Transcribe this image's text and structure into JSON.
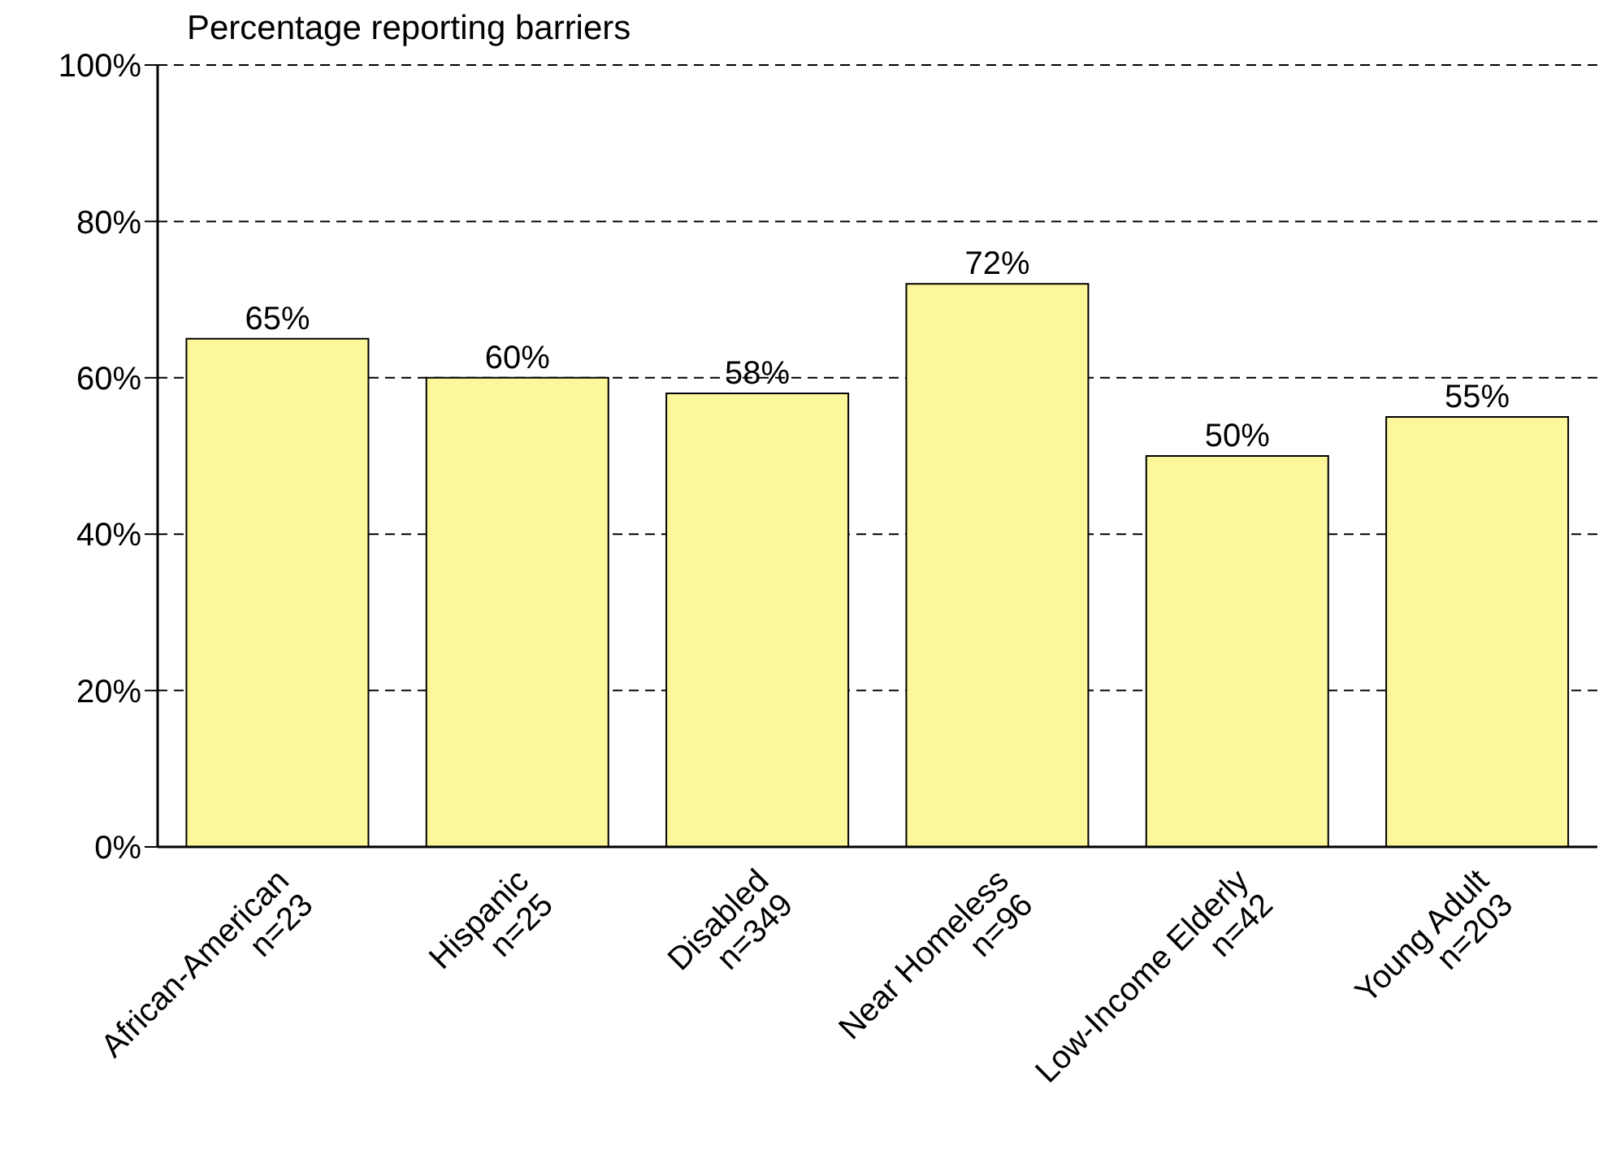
{
  "chart_data": {
    "type": "bar",
    "title": "Percentage reporting barriers",
    "categories": [
      "African-American\nn=23",
      "Hispanic\nn=25",
      "Disabled\nn=349",
      "Near Homeless\nn=96",
      "Low-Income Elderly\nn=42",
      "Young Adult\nn=203"
    ],
    "values": [
      65,
      60,
      58,
      72,
      50,
      55
    ],
    "color": "#fbf79a",
    "ylim": [
      0,
      100
    ],
    "yticks": [
      {
        "value": 0,
        "label": "0%"
      },
      {
        "value": 20,
        "label": "20%"
      },
      {
        "value": 40,
        "label": "40%"
      },
      {
        "value": 60,
        "label": "60%"
      },
      {
        "value": 80,
        "label": "80%"
      },
      {
        "value": 100,
        "label": "100%"
      }
    ],
    "value_labels": [
      "65%",
      "60%",
      "58%",
      "72%",
      "50%",
      "55%"
    ],
    "grid": "y"
  }
}
